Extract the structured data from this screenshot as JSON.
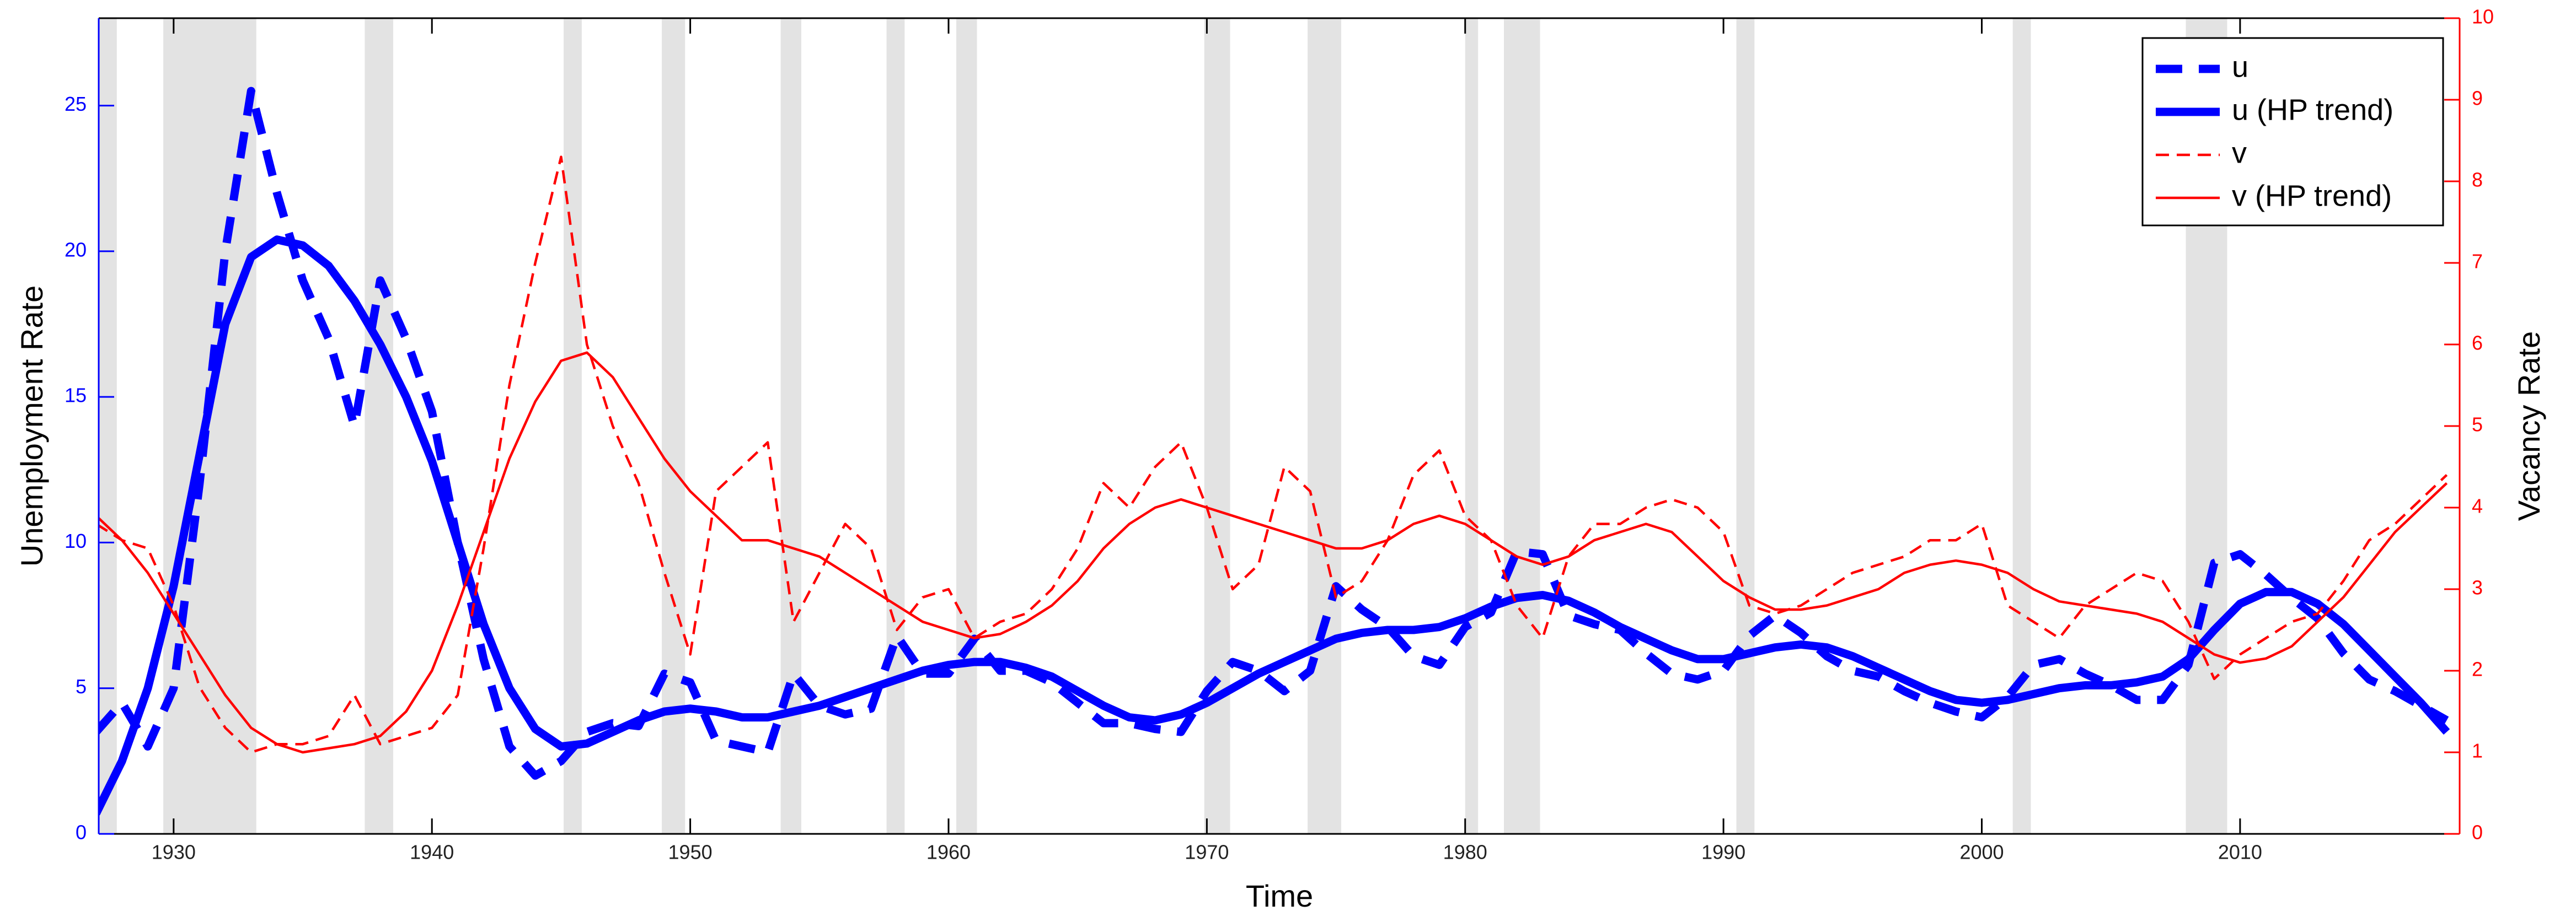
{
  "chart_data": {
    "type": "line",
    "x_label": "Time",
    "y_label": "Unemployment Rate",
    "y2_label": "Vacancy Rate",
    "xlim": [
      1927.1,
      2018.5
    ],
    "xticks": [
      1930,
      1940,
      1950,
      1960,
      1970,
      1980,
      1990,
      2000,
      2010
    ],
    "ylim": [
      0,
      28
    ],
    "yticks": [
      0,
      5,
      10,
      15,
      20,
      25
    ],
    "y2lim": [
      0,
      10
    ],
    "y2ticks": [
      0,
      1,
      2,
      3,
      4,
      5,
      6,
      7,
      8,
      9,
      10
    ],
    "legend": "northeast",
    "grid": false,
    "shaded_regions": [
      [
        1927.1,
        1927.8
      ],
      [
        1929.6,
        1933.2
      ],
      [
        1937.4,
        1938.5
      ],
      [
        1945.1,
        1945.8
      ],
      [
        1948.9,
        1949.8
      ],
      [
        1953.5,
        1954.3
      ],
      [
        1957.6,
        1958.3
      ],
      [
        1960.3,
        1961.1
      ],
      [
        1969.9,
        1970.9
      ],
      [
        1973.9,
        1975.2
      ],
      [
        1980.0,
        1980.5
      ],
      [
        1981.5,
        1982.9
      ],
      [
        1990.5,
        1991.2
      ],
      [
        2001.2,
        2001.9
      ],
      [
        2007.9,
        2009.5
      ]
    ],
    "shade_color": "#e3e3e3",
    "x": [
      1927,
      1928,
      1929,
      1930,
      1931,
      1932,
      1933,
      1934,
      1935,
      1936,
      1937,
      1938,
      1939,
      1940,
      1941,
      1942,
      1943,
      1944,
      1945,
      1946,
      1947,
      1948,
      1949,
      1950,
      1951,
      1952,
      1953,
      1954,
      1955,
      1956,
      1957,
      1958,
      1959,
      1960,
      1961,
      1962,
      1963,
      1964,
      1965,
      1966,
      1967,
      1968,
      1969,
      1970,
      1971,
      1972,
      1973,
      1974,
      1975,
      1976,
      1977,
      1978,
      1979,
      1980,
      1981,
      1982,
      1983,
      1984,
      1985,
      1986,
      1987,
      1988,
      1989,
      1990,
      1991,
      1992,
      1993,
      1994,
      1995,
      1996,
      1997,
      1998,
      1999,
      2000,
      2001,
      2002,
      2003,
      2004,
      2005,
      2006,
      2007,
      2008,
      2009,
      2010,
      2011,
      2012,
      2013,
      2014,
      2015,
      2016,
      2017,
      2018
    ],
    "series": [
      {
        "name": "u",
        "color": "#0000ff",
        "style": "dashed",
        "axis": "y",
        "values": [
          3.5,
          4.5,
          3,
          5,
          12,
          20,
          25.5,
          22,
          19,
          17,
          14,
          19,
          17,
          14.5,
          10,
          6,
          3,
          2,
          2.5,
          3.5,
          3.8,
          3.7,
          5.5,
          5.2,
          3.2,
          3,
          2.8,
          5.5,
          4.4,
          4.1,
          4.3,
          6.8,
          5.5,
          5.5,
          6.7,
          5.6,
          5.6,
          5.2,
          4.5,
          3.8,
          3.8,
          3.6,
          3.5,
          4.9,
          5.9,
          5.6,
          4.9,
          5.6,
          8.5,
          7.7,
          7.1,
          6.1,
          5.8,
          7.1,
          7.6,
          9.7,
          9.6,
          7.5,
          7.2,
          7,
          6.2,
          5.5,
          5.3,
          5.6,
          6.8,
          7.5,
          6.9,
          6.1,
          5.6,
          5.4,
          4.9,
          4.5,
          4.2,
          4,
          4.7,
          5.8,
          6,
          5.5,
          5.1,
          4.6,
          4.6,
          5.8,
          9.3,
          9.6,
          8.9,
          8.1,
          7.4,
          6.2,
          5.3,
          4.9,
          4.4,
          3.9
        ]
      },
      {
        "name": "u (HP trend)",
        "color": "#0000ff",
        "style": "solid",
        "axis": "y",
        "values": [
          0.7,
          2.5,
          5,
          8.5,
          13,
          17.5,
          19.8,
          20.4,
          20.2,
          19.5,
          18.3,
          16.8,
          15,
          12.8,
          10,
          7.2,
          5,
          3.6,
          3,
          3.1,
          3.5,
          3.9,
          4.2,
          4.3,
          4.2,
          4,
          4,
          4.2,
          4.4,
          4.7,
          5,
          5.3,
          5.6,
          5.8,
          5.9,
          5.9,
          5.7,
          5.4,
          4.9,
          4.4,
          4,
          3.9,
          4.1,
          4.5,
          5,
          5.5,
          5.9,
          6.3,
          6.7,
          6.9,
          7,
          7,
          7.1,
          7.4,
          7.8,
          8.1,
          8.2,
          8,
          7.6,
          7.1,
          6.7,
          6.3,
          6,
          6,
          6.2,
          6.4,
          6.5,
          6.4,
          6.1,
          5.7,
          5.3,
          4.9,
          4.6,
          4.5,
          4.6,
          4.8,
          5,
          5.1,
          5.1,
          5.2,
          5.4,
          6,
          7,
          7.9,
          8.3,
          8.3,
          7.9,
          7.2,
          6.3,
          5.4,
          4.5,
          3.5
        ]
      },
      {
        "name": "v",
        "color": "#ff0000",
        "style": "dashed",
        "axis": "y2",
        "values": [
          3.8,
          3.6,
          3.5,
          2.8,
          1.8,
          1.3,
          1,
          1.1,
          1.1,
          1.2,
          1.7,
          1.1,
          1.2,
          1.3,
          1.7,
          3.5,
          5.5,
          7,
          8.3,
          6,
          5,
          4.3,
          3.2,
          2.2,
          4.2,
          4.5,
          4.8,
          2.6,
          3.2,
          3.8,
          3.5,
          2.5,
          2.9,
          3,
          2.4,
          2.6,
          2.7,
          3,
          3.5,
          4.3,
          4,
          4.5,
          4.8,
          4,
          3,
          3.3,
          4.5,
          4.2,
          2.9,
          3.1,
          3.6,
          4.4,
          4.7,
          3.9,
          3.6,
          2.8,
          2.4,
          3.4,
          3.8,
          3.8,
          4,
          4.1,
          4,
          3.7,
          2.8,
          2.7,
          2.8,
          3,
          3.2,
          3.3,
          3.4,
          3.6,
          3.6,
          3.8,
          2.8,
          2.6,
          2.4,
          2.8,
          3,
          3.2,
          3.1,
          2.6,
          1.9,
          2.2,
          2.4,
          2.6,
          2.7,
          3.1,
          3.6,
          3.8,
          4.1,
          4.4
        ]
      },
      {
        "name": "v (HP trend)",
        "color": "#ff0000",
        "style": "solid",
        "axis": "y2",
        "values": [
          3.9,
          3.6,
          3.2,
          2.7,
          2.2,
          1.7,
          1.3,
          1.1,
          1,
          1.05,
          1.1,
          1.2,
          1.5,
          2,
          2.8,
          3.7,
          4.6,
          5.3,
          5.8,
          5.9,
          5.6,
          5.1,
          4.6,
          4.2,
          3.9,
          3.6,
          3.6,
          3.5,
          3.4,
          3.2,
          3,
          2.8,
          2.6,
          2.5,
          2.4,
          2.45,
          2.6,
          2.8,
          3.1,
          3.5,
          3.8,
          4,
          4.1,
          4,
          3.9,
          3.8,
          3.7,
          3.6,
          3.5,
          3.5,
          3.6,
          3.8,
          3.9,
          3.8,
          3.6,
          3.4,
          3.3,
          3.4,
          3.6,
          3.7,
          3.8,
          3.7,
          3.4,
          3.1,
          2.9,
          2.75,
          2.75,
          2.8,
          2.9,
          3,
          3.2,
          3.3,
          3.35,
          3.3,
          3.2,
          3,
          2.85,
          2.8,
          2.75,
          2.7,
          2.6,
          2.4,
          2.2,
          2.1,
          2.15,
          2.3,
          2.6,
          2.9,
          3.3,
          3.7,
          4,
          4.3
        ]
      }
    ]
  }
}
